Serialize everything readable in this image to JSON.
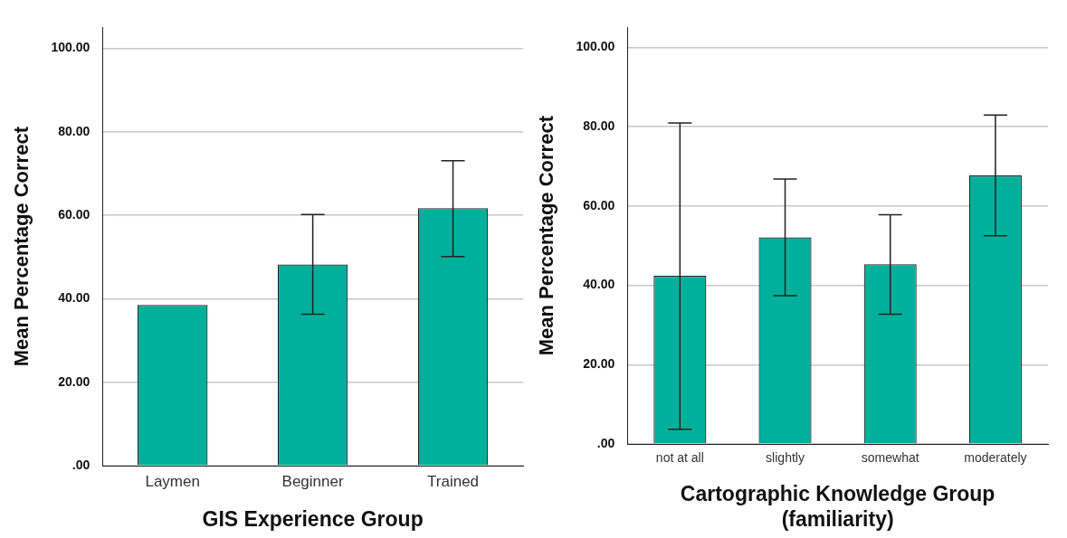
{
  "chart_data": [
    {
      "type": "bar",
      "xlabel": "GIS Experience Group",
      "ylabel": "Mean Percentage Correct",
      "categories": [
        "Laymen",
        "Beginner",
        "Trained"
      ],
      "values": [
        38.5,
        48.2,
        61.7
      ],
      "errors": [
        null,
        [
          36.3,
          60.2
        ],
        [
          50.1,
          73.1
        ]
      ],
      "color": "#00b09b",
      "ylim": [
        0,
        105
      ],
      "yticks": [
        {
          "value": 0,
          "label": ".00"
        },
        {
          "value": 20,
          "label": "20.00"
        },
        {
          "value": 40,
          "label": "40.00"
        },
        {
          "value": 60,
          "label": "60.00"
        },
        {
          "value": 80,
          "label": "80.00"
        },
        {
          "value": 100,
          "label": "100.00"
        }
      ],
      "grid": "y",
      "legend": false
    },
    {
      "type": "bar",
      "xlabel": "Cartographic Knowledge Group\n(familiarity)",
      "ylabel": "Mean Percentage Correct",
      "categories": [
        "not at all",
        "slightly",
        "somewhat",
        "moderately"
      ],
      "values": [
        42.4,
        52.1,
        45.3,
        67.7
      ],
      "errors": [
        [
          3.7,
          80.9
        ],
        [
          37.4,
          66.8
        ],
        [
          32.7,
          57.8
        ],
        [
          52.5,
          82.9
        ]
      ],
      "color": "#00b09b",
      "ylim": [
        0,
        105
      ],
      "yticks": [
        {
          "value": 0,
          "label": ".00"
        },
        {
          "value": 20,
          "label": "20.00"
        },
        {
          "value": 40,
          "label": "40.00"
        },
        {
          "value": 60,
          "label": "60.00"
        },
        {
          "value": 80,
          "label": "80.00"
        },
        {
          "value": 100,
          "label": "100.00"
        }
      ],
      "grid": "y",
      "legend": false
    }
  ]
}
